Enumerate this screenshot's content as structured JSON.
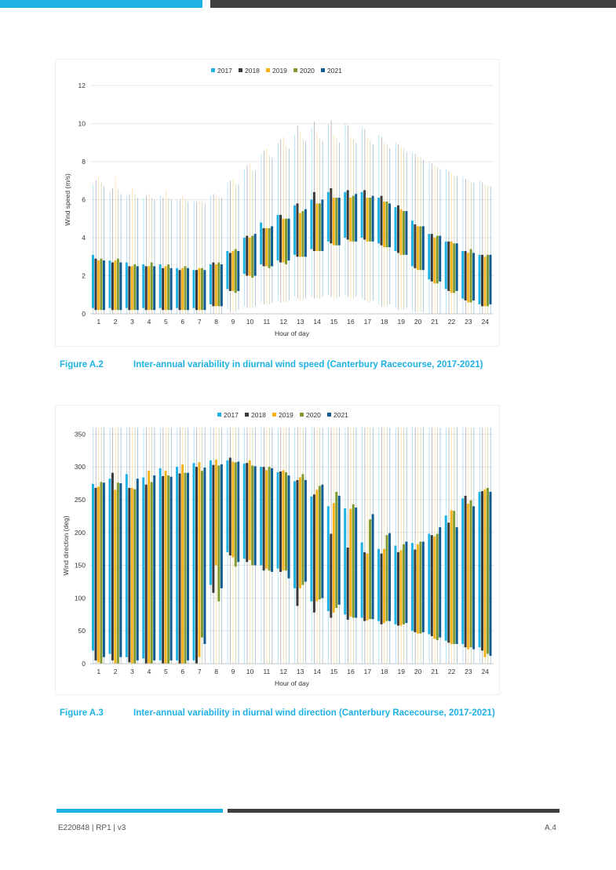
{
  "header": {},
  "figures": [
    {
      "number": "Figure A.2",
      "title": "Inter-annual variability in diurnal wind speed (Canterbury Racecourse, 2017-2021)"
    },
    {
      "number": "Figure A.3",
      "title": "Inter-annual variability in diurnal wind direction (Canterbury Racecourse, 2017-2021)"
    }
  ],
  "footer": {
    "doc_ref": "E220848  |  RP1  |  v3",
    "page": "A.4"
  },
  "colors": {
    "2017": "#1eb1e4",
    "2018": "#3a3a3a",
    "2019": "#f5b21b",
    "2020": "#7f9a2f",
    "2021": "#0e5c8f"
  },
  "chart_data": [
    {
      "type": "box",
      "title": "",
      "xlabel": "Hour of day",
      "ylabel": "Wind speed (m/s)",
      "ylim": [
        0,
        12
      ],
      "yticks": [
        0,
        2,
        4,
        6,
        8,
        10,
        12
      ],
      "categories": [
        "1",
        "2",
        "3",
        "4",
        "5",
        "6",
        "7",
        "8",
        "9",
        "10",
        "11",
        "12",
        "13",
        "14",
        "15",
        "16",
        "17",
        "18",
        "19",
        "20",
        "21",
        "22",
        "23",
        "24"
      ],
      "legend": {
        "position": "top",
        "entries": [
          "2017",
          "2018",
          "2019",
          "2020",
          "2021"
        ]
      },
      "grid": true,
      "series": [
        {
          "name": "2017",
          "mean": [
            3.1,
            2.8,
            2.7,
            2.6,
            2.6,
            2.4,
            2.3,
            2.6,
            3.3,
            4.0,
            4.8,
            5.2,
            5.7,
            6.0,
            6.4,
            6.4,
            6.4,
            6.1,
            5.6,
            4.9,
            4.2,
            3.8,
            3.3,
            3.1
          ],
          "q1": [
            0.3,
            0.3,
            0.3,
            0.3,
            0.3,
            0.3,
            0.3,
            0.5,
            1.3,
            2.1,
            2.6,
            2.8,
            3.1,
            3.4,
            3.8,
            4.0,
            4.0,
            3.7,
            3.3,
            2.5,
            1.8,
            1.3,
            0.8,
            0.5
          ],
          "min": [
            0.0,
            0.0,
            0.0,
            0.0,
            0.0,
            0.0,
            0.0,
            0.0,
            0.2,
            0.4,
            0.6,
            0.7,
            0.9,
            0.9,
            1.0,
            1.0,
            0.8,
            0.5,
            0.3,
            0.1,
            0.0,
            0.0,
            0.0,
            0.0
          ],
          "max": [
            6.8,
            6.4,
            6.2,
            6.1,
            6.2,
            6.0,
            5.9,
            6.2,
            6.9,
            7.6,
            8.4,
            9.0,
            9.4,
            9.8,
            10.0,
            10.0,
            9.8,
            9.4,
            9.0,
            8.5,
            8.0,
            7.6,
            7.2,
            7.0
          ]
        },
        {
          "name": "2018",
          "mean": [
            2.9,
            2.7,
            2.5,
            2.5,
            2.4,
            2.3,
            2.3,
            2.7,
            3.2,
            4.1,
            4.5,
            5.2,
            5.8,
            6.4,
            6.6,
            6.5,
            6.5,
            6.2,
            5.7,
            4.7,
            4.2,
            3.8,
            3.3,
            3.1
          ],
          "q1": [
            0.2,
            0.2,
            0.2,
            0.2,
            0.2,
            0.2,
            0.2,
            0.4,
            1.2,
            2.0,
            2.5,
            2.7,
            3.0,
            3.3,
            3.7,
            3.9,
            3.9,
            3.6,
            3.2,
            2.4,
            1.7,
            1.2,
            0.7,
            0.4
          ],
          "min": [
            0.0,
            0.0,
            0.0,
            0.0,
            0.0,
            0.0,
            0.0,
            0.0,
            0.1,
            0.3,
            0.5,
            0.6,
            0.8,
            0.8,
            0.9,
            0.9,
            0.7,
            0.4,
            0.2,
            0.1,
            0.0,
            0.0,
            0.0,
            0.0
          ],
          "max": [
            7.0,
            6.6,
            6.3,
            6.2,
            6.1,
            6.0,
            5.9,
            6.3,
            7.0,
            7.8,
            8.6,
            9.2,
            9.9,
            10.1,
            10.2,
            9.9,
            9.7,
            9.3,
            8.9,
            8.4,
            7.9,
            7.5,
            7.1,
            6.9
          ]
        },
        {
          "name": "2019",
          "mean": [
            2.8,
            2.8,
            2.5,
            2.5,
            2.5,
            2.4,
            2.4,
            2.6,
            3.3,
            4.0,
            4.5,
            5.0,
            5.3,
            5.8,
            6.1,
            6.1,
            6.1,
            5.9,
            5.5,
            4.6,
            4.0,
            3.8,
            3.2,
            3.0
          ],
          "q1": [
            0.2,
            0.2,
            0.2,
            0.2,
            0.2,
            0.2,
            0.2,
            0.4,
            1.2,
            2.0,
            2.5,
            2.7,
            3.0,
            3.3,
            3.6,
            3.8,
            3.8,
            3.5,
            3.1,
            2.3,
            1.6,
            1.1,
            0.6,
            0.4
          ],
          "min": [
            0.0,
            0.0,
            0.0,
            0.0,
            0.0,
            0.0,
            0.0,
            0.0,
            0.1,
            0.3,
            0.5,
            0.6,
            0.7,
            0.8,
            0.8,
            0.8,
            0.6,
            0.4,
            0.2,
            0.1,
            0.0,
            0.0,
            0.0,
            0.0
          ],
          "max": [
            7.2,
            7.2,
            6.6,
            6.3,
            6.5,
            6.2,
            6.0,
            6.2,
            7.1,
            7.9,
            8.7,
            9.3,
            9.6,
            9.5,
            9.4,
            9.3,
            9.2,
            9.0,
            8.8,
            8.3,
            7.8,
            7.4,
            7.0,
            6.8
          ]
        },
        {
          "name": "2020",
          "mean": [
            2.9,
            2.9,
            2.6,
            2.7,
            2.6,
            2.5,
            2.4,
            2.7,
            3.4,
            4.1,
            4.5,
            5.0,
            5.4,
            5.8,
            6.1,
            6.2,
            6.1,
            5.9,
            5.4,
            4.6,
            4.1,
            3.7,
            3.4,
            3.1
          ],
          "q1": [
            0.2,
            0.2,
            0.2,
            0.2,
            0.2,
            0.2,
            0.2,
            0.4,
            1.1,
            1.9,
            2.4,
            2.6,
            3.0,
            3.3,
            3.6,
            3.8,
            3.8,
            3.5,
            3.1,
            2.3,
            1.6,
            1.1,
            0.6,
            0.4
          ],
          "min": [
            0.0,
            0.0,
            0.0,
            0.0,
            0.0,
            0.0,
            0.0,
            0.0,
            0.1,
            0.3,
            0.5,
            0.6,
            0.7,
            0.8,
            0.8,
            0.8,
            0.6,
            0.4,
            0.2,
            0.1,
            0.0,
            0.0,
            0.0,
            0.0
          ],
          "max": [
            6.9,
            6.5,
            6.3,
            6.1,
            6.1,
            6.0,
            5.9,
            6.1,
            6.8,
            7.5,
            8.3,
            8.8,
            9.2,
            9.2,
            9.2,
            9.2,
            9.1,
            8.9,
            8.7,
            8.2,
            7.7,
            7.3,
            6.9,
            6.7
          ]
        },
        {
          "name": "2021",
          "mean": [
            2.8,
            2.7,
            2.5,
            2.5,
            2.4,
            2.4,
            2.3,
            2.6,
            3.3,
            4.2,
            4.6,
            5.0,
            5.5,
            6.0,
            6.1,
            6.3,
            6.2,
            5.8,
            5.4,
            4.6,
            4.1,
            3.7,
            3.2,
            3.1
          ],
          "q1": [
            0.2,
            0.2,
            0.2,
            0.2,
            0.2,
            0.2,
            0.2,
            0.4,
            1.2,
            2.0,
            2.5,
            2.8,
            3.0,
            3.3,
            3.6,
            3.8,
            3.8,
            3.5,
            3.1,
            2.3,
            1.7,
            1.2,
            0.7,
            0.5
          ],
          "min": [
            0.0,
            0.0,
            0.0,
            0.0,
            0.0,
            0.0,
            0.0,
            0.0,
            0.2,
            0.4,
            0.6,
            0.7,
            0.8,
            0.9,
            0.9,
            0.9,
            0.7,
            0.5,
            0.3,
            0.1,
            0.0,
            0.0,
            0.0,
            0.0
          ],
          "max": [
            6.7,
            6.3,
            6.1,
            6.0,
            6.0,
            5.9,
            5.8,
            6.1,
            6.8,
            7.5,
            8.2,
            8.7,
            9.1,
            9.1,
            9.0,
            9.0,
            8.9,
            8.7,
            8.5,
            8.1,
            7.6,
            7.2,
            6.9,
            6.7
          ]
        }
      ]
    },
    {
      "type": "box",
      "title": "",
      "xlabel": "Hour of day",
      "ylabel": "Wind direction (deg)",
      "ylim": [
        0,
        360
      ],
      "yticks": [
        0,
        50,
        100,
        150,
        200,
        250,
        300,
        350
      ],
      "categories": [
        "1",
        "2",
        "3",
        "4",
        "5",
        "6",
        "7",
        "8",
        "9",
        "10",
        "11",
        "12",
        "13",
        "14",
        "15",
        "16",
        "17",
        "18",
        "19",
        "20",
        "21",
        "22",
        "23",
        "24"
      ],
      "legend": {
        "position": "top",
        "entries": [
          "2017",
          "2018",
          "2019",
          "2020",
          "2021"
        ]
      },
      "grid": true,
      "series": [
        {
          "name": "2017",
          "mean": [
            274,
            282,
            289,
            284,
            298,
            300,
            306,
            310,
            310,
            305,
            300,
            292,
            278,
            255,
            240,
            237,
            185,
            175,
            180,
            184,
            198,
            226,
            252,
            262
          ],
          "q1": [
            20,
            15,
            10,
            8,
            5,
            5,
            5,
            120,
            170,
            160,
            150,
            145,
            115,
            95,
            80,
            75,
            70,
            65,
            60,
            50,
            45,
            35,
            30,
            25
          ],
          "min": [
            0,
            0,
            0,
            0,
            0,
            0,
            0,
            0,
            0,
            0,
            0,
            0,
            0,
            0,
            0,
            0,
            0,
            0,
            0,
            0,
            0,
            0,
            0,
            0
          ],
          "max": [
            360,
            360,
            360,
            360,
            360,
            360,
            360,
            360,
            360,
            360,
            360,
            360,
            360,
            360,
            360,
            360,
            360,
            360,
            360,
            360,
            360,
            360,
            360,
            360
          ]
        },
        {
          "name": "2018",
          "mean": [
            268,
            291,
            268,
            273,
            286,
            290,
            300,
            303,
            314,
            306,
            300,
            293,
            280,
            258,
            198,
            177,
            170,
            168,
            170,
            174,
            196,
            215,
            256,
            263
          ],
          "q1": [
            5,
            5,
            2,
            0,
            0,
            0,
            0,
            108,
            165,
            155,
            142,
            140,
            88,
            78,
            70,
            67,
            65,
            60,
            58,
            48,
            42,
            32,
            25,
            20
          ],
          "min": [
            0,
            0,
            0,
            0,
            0,
            0,
            0,
            0,
            0,
            0,
            0,
            0,
            0,
            0,
            0,
            0,
            0,
            0,
            0,
            0,
            0,
            0,
            0,
            0
          ],
          "max": [
            360,
            360,
            360,
            360,
            360,
            360,
            360,
            360,
            360,
            360,
            360,
            360,
            360,
            360,
            360,
            360,
            360,
            360,
            360,
            360,
            360,
            360,
            360,
            360
          ]
        },
        {
          "name": "2019",
          "mean": [
            270,
            265,
            268,
            294,
            294,
            304,
            307,
            311,
            308,
            310,
            295,
            295,
            284,
            265,
            245,
            236,
            168,
            175,
            173,
            182,
            194,
            234,
            244,
            266
          ],
          "q1": [
            2,
            0,
            0,
            0,
            0,
            0,
            10,
            150,
            162,
            158,
            145,
            142,
            115,
            95,
            78,
            72,
            66,
            62,
            58,
            46,
            38,
            30,
            22,
            10
          ],
          "min": [
            0,
            0,
            0,
            0,
            0,
            0,
            0,
            0,
            0,
            0,
            0,
            0,
            0,
            0,
            0,
            0,
            0,
            0,
            0,
            0,
            0,
            0,
            0,
            0
          ],
          "max": [
            360,
            360,
            360,
            360,
            360,
            360,
            360,
            360,
            360,
            360,
            360,
            360,
            360,
            360,
            360,
            360,
            360,
            360,
            360,
            360,
            360,
            360,
            360,
            360
          ]
        },
        {
          "name": "2020",
          "mean": [
            277,
            276,
            266,
            277,
            287,
            291,
            294,
            302,
            307,
            302,
            300,
            292,
            289,
            271,
            262,
            243,
            220,
            196,
            182,
            186,
            198,
            233,
            249,
            268
          ],
          "q1": [
            0,
            0,
            0,
            0,
            0,
            0,
            40,
            95,
            148,
            150,
            142,
            142,
            120,
            98,
            85,
            70,
            68,
            65,
            60,
            46,
            36,
            30,
            25,
            15
          ],
          "min": [
            0,
            0,
            0,
            0,
            0,
            0,
            0,
            0,
            0,
            0,
            0,
            0,
            0,
            0,
            0,
            0,
            0,
            0,
            0,
            0,
            0,
            0,
            0,
            0
          ],
          "max": [
            360,
            360,
            360,
            360,
            360,
            360,
            360,
            360,
            360,
            360,
            360,
            360,
            360,
            360,
            360,
            360,
            360,
            360,
            360,
            360,
            360,
            360,
            360,
            360
          ]
        },
        {
          "name": "2021",
          "mean": [
            276,
            275,
            282,
            287,
            285,
            291,
            299,
            304,
            308,
            301,
            298,
            287,
            280,
            273,
            256,
            238,
            228,
            199,
            186,
            186,
            208,
            208,
            240,
            262
          ],
          "q1": [
            10,
            10,
            5,
            5,
            5,
            5,
            30,
            115,
            155,
            150,
            140,
            130,
            125,
            100,
            90,
            70,
            68,
            65,
            62,
            48,
            40,
            30,
            22,
            12
          ],
          "min": [
            0,
            0,
            0,
            0,
            0,
            0,
            0,
            0,
            0,
            0,
            0,
            0,
            0,
            0,
            0,
            0,
            0,
            0,
            0,
            0,
            0,
            0,
            0,
            0
          ],
          "max": [
            360,
            360,
            360,
            360,
            360,
            360,
            360,
            360,
            360,
            360,
            360,
            360,
            360,
            360,
            360,
            360,
            360,
            360,
            360,
            360,
            360,
            360,
            360,
            360
          ]
        }
      ]
    }
  ]
}
